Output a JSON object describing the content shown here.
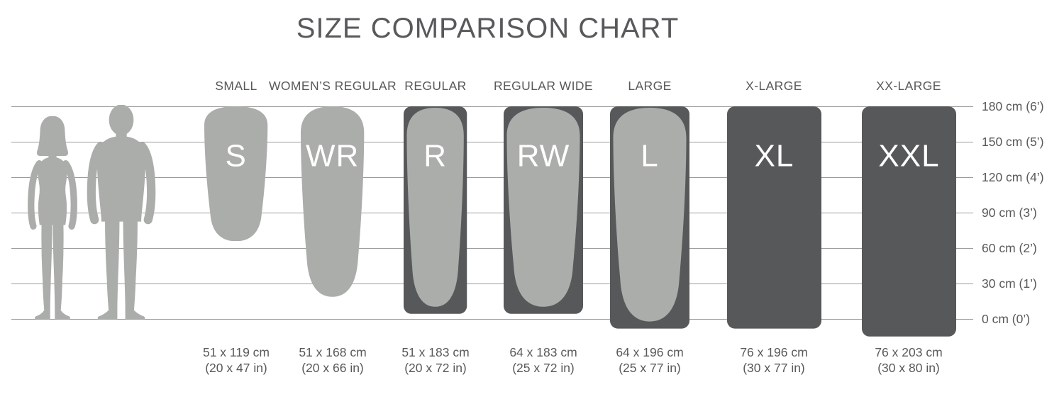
{
  "title": "SIZE COMPARISON CHART",
  "colors": {
    "light_pad": "#abadaa",
    "dark_pad": "#57585a",
    "grid_line": "#9c9c9c",
    "text": "#58595b",
    "pad_label": "#ffffff",
    "silhouette": "#abadaa"
  },
  "icons": [
    "woman-silhouette",
    "man-silhouette"
  ],
  "axis": {
    "position": "right",
    "ticks": [
      {
        "cm": 180,
        "label": "180 cm (6’)"
      },
      {
        "cm": 150,
        "label": "150 cm (5’)"
      },
      {
        "cm": 120,
        "label": "120 cm (4’)"
      },
      {
        "cm": 90,
        "label": "90 cm (3’)"
      },
      {
        "cm": 60,
        "label": "60 cm (2’)"
      },
      {
        "cm": 30,
        "label": "30 cm (1’)"
      },
      {
        "cm": 0,
        "label": "0 cm (0’)"
      }
    ]
  },
  "sizes": [
    {
      "header": "SMALL",
      "code": "S",
      "style": "light",
      "width_cm": 51,
      "length_cm": 119,
      "dims_cm": "51 x 119 cm",
      "dims_in": "(20 x 47 in)"
    },
    {
      "header": "WOMEN’S REGULAR",
      "code": "WR",
      "style": "light",
      "width_cm": 51,
      "length_cm": 168,
      "dims_cm": "51 x 168 cm",
      "dims_in": "(20 x 66 in)"
    },
    {
      "header": "REGULAR",
      "code": "R",
      "style": "outlined",
      "width_cm": 51,
      "length_cm": 183,
      "dims_cm": "51 x 183 cm",
      "dims_in": "(20 x 72 in)"
    },
    {
      "header": "REGULAR WIDE",
      "code": "RW",
      "style": "outlined",
      "width_cm": 64,
      "length_cm": 183,
      "dims_cm": "64 x 183 cm",
      "dims_in": "(25 x 72 in)"
    },
    {
      "header": "LARGE",
      "code": "L",
      "style": "outlined",
      "width_cm": 64,
      "length_cm": 196,
      "dims_cm": "64 x 196 cm",
      "dims_in": "(25 x 77 in)"
    },
    {
      "header": "X-LARGE",
      "code": "XL",
      "style": "dark",
      "width_cm": 76,
      "length_cm": 196,
      "dims_cm": "76 x 196 cm",
      "dims_in": "(30 x 77 in)"
    },
    {
      "header": "XX-LARGE",
      "code": "XXL",
      "style": "dark",
      "width_cm": 76,
      "length_cm": 203,
      "dims_cm": "76 x 203 cm",
      "dims_in": "(30 x 80 in)"
    }
  ],
  "chart_data": {
    "type": "bar",
    "title": "SIZE COMPARISON CHART",
    "categories": [
      "SMALL",
      "WOMEN’S REGULAR",
      "REGULAR",
      "REGULAR WIDE",
      "LARGE",
      "X-LARGE",
      "XX-LARGE"
    ],
    "series": [
      {
        "name": "width_cm",
        "values": [
          51,
          51,
          51,
          64,
          64,
          76,
          76
        ]
      },
      {
        "name": "length_cm",
        "values": [
          119,
          168,
          183,
          183,
          196,
          196,
          203
        ]
      },
      {
        "name": "width_in",
        "values": [
          20,
          20,
          20,
          25,
          25,
          30,
          30
        ]
      },
      {
        "name": "length_in",
        "values": [
          47,
          66,
          72,
          72,
          77,
          77,
          80
        ]
      }
    ],
    "annotations": [
      "S",
      "WR",
      "R",
      "RW",
      "L",
      "XL",
      "XXL"
    ],
    "y_axis": {
      "position": "right",
      "range_cm": [
        0,
        180
      ],
      "tick_labels": [
        "180 cm (6’)",
        "150 cm (5’)",
        "120 cm (4’)",
        "90 cm (3’)",
        "60 cm (2’)",
        "30 cm (1’)",
        "0 cm (0’)"
      ]
    },
    "grid": true
  }
}
